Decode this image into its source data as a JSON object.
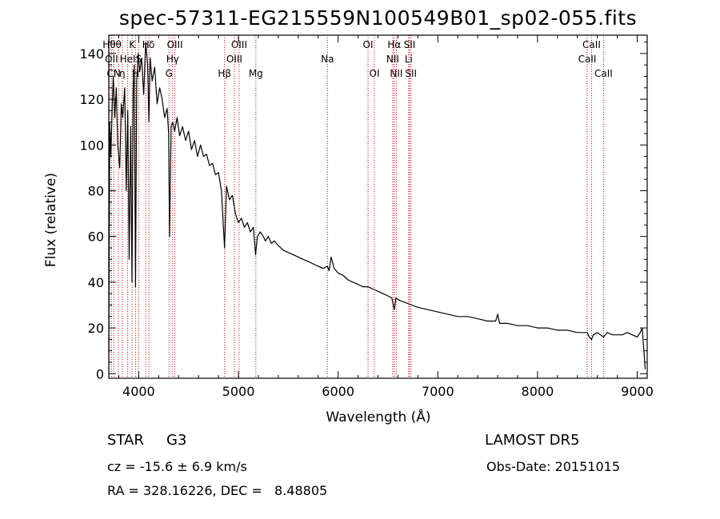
{
  "title": "spec-57311-EG215559N100549B01_sp02-055.fits",
  "info": {
    "object_class": "STAR",
    "subclass": "G3",
    "cz": "cz = -15.6 ± 6.9 km/s",
    "radec": "RA = 328.16226, DEC =   8.48805",
    "survey": "LAMOST DR5",
    "obs_date": "Obs-Date: 20151015"
  },
  "colors": {
    "line": "#000000",
    "marker": "#cc0000",
    "axis": "#000000"
  },
  "chart_data": {
    "type": "line",
    "xlabel": "Wavelength (Å)",
    "ylabel": "Flux (relative)",
    "xlim": [
      3700,
      9100
    ],
    "ylim": [
      -2,
      148
    ],
    "xticks": [
      4000,
      5000,
      6000,
      7000,
      8000,
      9000
    ],
    "yticks": [
      0,
      20,
      40,
      60,
      80,
      100,
      120,
      140
    ],
    "grid": false,
    "series": [
      {
        "x": [
          3700,
          3710,
          3720,
          3735,
          3745,
          3760,
          3775,
          3790,
          3810,
          3825,
          3840,
          3860,
          3875,
          3890,
          3905,
          3920,
          3933,
          3945,
          3955,
          3968,
          3980,
          3995,
          4010,
          4030,
          4050,
          4070,
          4090,
          4102,
          4115,
          4135,
          4160,
          4185,
          4210,
          4235,
          4260,
          4285,
          4300,
          4310,
          4325,
          4340,
          4360,
          4385,
          4410,
          4440,
          4470,
          4500,
          4530,
          4560,
          4590,
          4620,
          4650,
          4680,
          4710,
          4740,
          4770,
          4800,
          4830,
          4861,
          4880,
          4910,
          4940,
          4970,
          5000,
          5030,
          5060,
          5090,
          5120,
          5150,
          5172,
          5190,
          5220,
          5250,
          5270,
          5300,
          5330,
          5360,
          5400,
          5450,
          5500,
          5550,
          5600,
          5650,
          5700,
          5750,
          5800,
          5850,
          5893,
          5910,
          5930,
          5960,
          6000,
          6050,
          6100,
          6150,
          6200,
          6250,
          6300,
          6350,
          6400,
          6450,
          6500,
          6540,
          6563,
          6580,
          6620,
          6680,
          6740,
          6800,
          6900,
          7000,
          7100,
          7200,
          7300,
          7400,
          7500,
          7580,
          7600,
          7620,
          7700,
          7800,
          7900,
          8000,
          8100,
          8200,
          8300,
          8400,
          8498,
          8520,
          8542,
          8560,
          8600,
          8662,
          8700,
          8750,
          8800,
          8850,
          8900,
          8950,
          9000,
          9030,
          9050,
          9080
        ],
        "y": [
          10,
          110,
          95,
          118,
          130,
          112,
          125,
          100,
          90,
          118,
          112,
          125,
          80,
          115,
          50,
          108,
          40,
          125,
          135,
          38,
          128,
          140,
          132,
          138,
          122,
          145,
          135,
          110,
          138,
          128,
          134,
          118,
          125,
          120,
          112,
          116,
          105,
          60,
          108,
          110,
          106,
          112,
          104,
          108,
          102,
          106,
          98,
          102,
          95,
          100,
          95,
          96,
          91,
          92,
          87,
          88,
          80,
          55,
          82,
          76,
          78,
          70,
          66,
          68,
          64,
          66,
          62,
          64,
          52,
          60,
          62,
          60,
          58,
          60,
          57,
          58,
          56,
          54,
          53,
          52,
          51,
          50,
          49,
          48,
          47,
          46,
          47,
          45,
          51,
          46,
          44,
          43,
          41,
          40,
          39,
          38,
          38,
          37,
          36,
          35,
          34,
          33,
          28,
          33,
          32,
          31,
          30,
          29,
          28,
          27,
          26,
          25,
          25,
          24,
          23,
          23,
          26,
          22,
          22,
          21,
          21,
          20,
          20,
          19,
          19,
          18,
          18,
          16,
          15,
          17,
          18,
          16,
          18,
          17,
          17,
          17,
          18,
          17,
          16,
          18,
          20,
          2
        ]
      }
    ],
    "lines": [
      {
        "wavelength": 3704,
        "label": "Hθ",
        "row": 0,
        "align": "center"
      },
      {
        "wavelength": 3727,
        "label": "OII",
        "row": 1,
        "align": "center"
      },
      {
        "wavelength": 3750,
        "label": "CN",
        "row": 2,
        "align": "center"
      },
      {
        "wavelength": 3798,
        "label": "θ",
        "row": 0,
        "align": "center"
      },
      {
        "wavelength": 3835,
        "label": "η",
        "row": 2,
        "align": "center"
      },
      {
        "wavelength": 3889,
        "label": "HeI",
        "row": 1,
        "align": "center"
      },
      {
        "wavelength": 3934,
        "label": "K",
        "row": 0,
        "align": "center"
      },
      {
        "wavelength": 3969,
        "label": "H",
        "row": 2,
        "align": "center"
      },
      {
        "wavelength": 4000,
        "label": "S",
        "row": 1,
        "align": "center"
      },
      {
        "wavelength": 4070,
        "label": "H",
        "row": 0,
        "align": "center"
      },
      {
        "wavelength": 4102,
        "label": "δ",
        "row": 0,
        "align": "left"
      },
      {
        "wavelength": 4304,
        "label": "G",
        "row": 2,
        "align": "center"
      },
      {
        "wavelength": 4340,
        "label": "Hγ",
        "row": 1,
        "align": "center"
      },
      {
        "wavelength": 4363,
        "label": "OIII",
        "row": 0,
        "align": "center"
      },
      {
        "wavelength": 4861,
        "label": "Hβ",
        "row": 2,
        "align": "center"
      },
      {
        "wavelength": 4959,
        "label": "OIII",
        "row": 1,
        "align": "center"
      },
      {
        "wavelength": 5007,
        "label": "OIII",
        "row": 0,
        "align": "center"
      },
      {
        "wavelength": 5175,
        "label": "Mg",
        "row": 2,
        "align": "center"
      },
      {
        "wavelength": 5893,
        "label": "Na",
        "row": 1,
        "align": "center"
      },
      {
        "wavelength": 6300,
        "label": "OI",
        "row": 0,
        "align": "center"
      },
      {
        "wavelength": 6364,
        "label": "OI",
        "row": 2,
        "align": "center"
      },
      {
        "wavelength": 6548,
        "label": "NII",
        "row": 1,
        "align": "center"
      },
      {
        "wavelength": 6563,
        "label": "Hα",
        "row": 0,
        "align": "center"
      },
      {
        "wavelength": 6584,
        "label": "NII",
        "row": 2,
        "align": "center"
      },
      {
        "wavelength": 6708,
        "label": "Li",
        "row": 1,
        "align": "center"
      },
      {
        "wavelength": 6717,
        "label": "SII",
        "row": 0,
        "align": "center"
      },
      {
        "wavelength": 6731,
        "label": "SII",
        "row": 2,
        "align": "center"
      },
      {
        "wavelength": 8498,
        "label": "CaII",
        "row": 1,
        "align": "center"
      },
      {
        "wavelength": 8542,
        "label": "CaII",
        "row": 0,
        "align": "center"
      },
      {
        "wavelength": 8662,
        "label": "CaII",
        "row": 2,
        "align": "center"
      }
    ]
  }
}
